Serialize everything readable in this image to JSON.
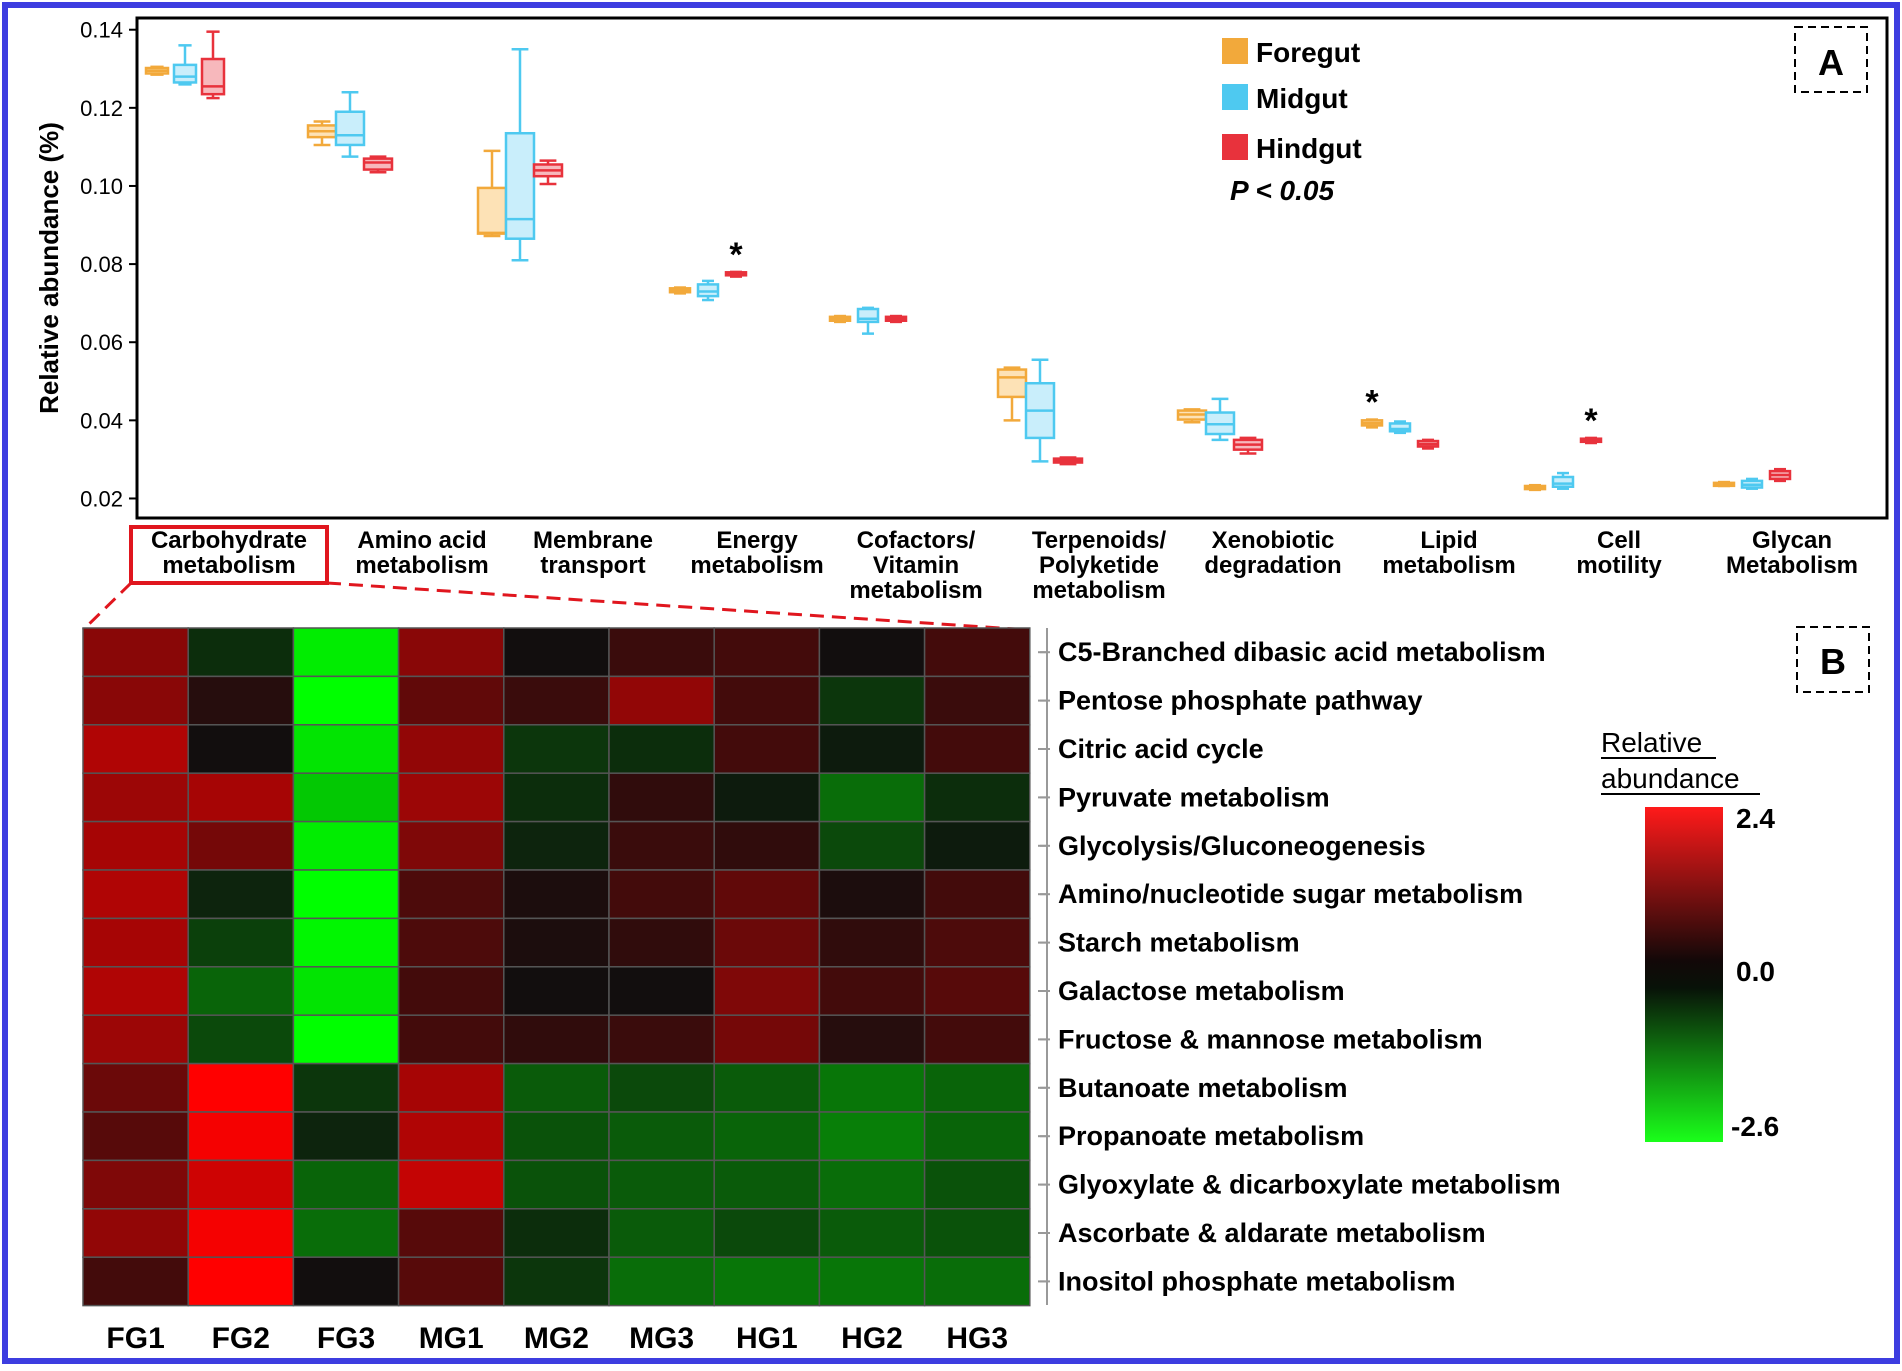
{
  "colors": {
    "border": "#3d3de0",
    "foregut": "#f2a93b",
    "midgut": "#4ec9f0",
    "hindgut": "#e8323c",
    "highlight": "#e0161e"
  },
  "chart_data": [
    {
      "type": "box",
      "panel_label": "A",
      "ylabel": "Relative abundance (%)",
      "ylim": [
        0.015,
        0.143
      ],
      "yticks": [
        "0.02",
        "0.04",
        "0.06",
        "0.08",
        "0.10",
        "0.12",
        "0.14"
      ],
      "ytick_values": [
        0.02,
        0.04,
        0.06,
        0.08,
        0.1,
        0.12,
        0.14
      ],
      "categories": [
        [
          "Carbohydrate",
          "metabolism"
        ],
        [
          "Amino  acid",
          "metabolism"
        ],
        [
          "Membrane",
          "transport"
        ],
        [
          "Energy",
          "metabolism"
        ],
        [
          "Cofactors/",
          "Vitamin",
          "metabolism"
        ],
        [
          "Terpenoids/",
          "Polyketide",
          "metabolism"
        ],
        [
          "Xenobiotic",
          "degradation"
        ],
        [
          "Lipid",
          "metabolism"
        ],
        [
          "Cell",
          "motility"
        ],
        [
          "Glycan",
          "Metabolism"
        ]
      ],
      "highlighted_category": 0,
      "legend": {
        "entries": [
          "Foregut",
          "Midgut",
          "Hindgut"
        ],
        "note": "P < 0.05",
        "placement": "top-right"
      },
      "series": [
        {
          "name": "Foregut",
          "boxes": [
            {
              "min": 0.1285,
              "q1": 0.1288,
              "median": 0.1295,
              "q3": 0.1302,
              "max": 0.1305
            },
            {
              "min": 0.1105,
              "q1": 0.1125,
              "median": 0.114,
              "q3": 0.1155,
              "max": 0.1165
            },
            {
              "min": 0.0872,
              "q1": 0.0878,
              "median": 0.088,
              "q3": 0.0995,
              "max": 0.109
            },
            {
              "min": 0.0725,
              "q1": 0.0728,
              "median": 0.0733,
              "q3": 0.0738,
              "max": 0.074
            },
            {
              "min": 0.0652,
              "q1": 0.0655,
              "median": 0.066,
              "q3": 0.0665,
              "max": 0.0667
            },
            {
              "min": 0.04,
              "q1": 0.046,
              "median": 0.051,
              "q3": 0.053,
              "max": 0.0535
            },
            {
              "min": 0.0395,
              "q1": 0.0402,
              "median": 0.0415,
              "q3": 0.0425,
              "max": 0.0428
            },
            {
              "min": 0.0382,
              "q1": 0.0387,
              "median": 0.0393,
              "q3": 0.04,
              "max": 0.0402
            },
            {
              "min": 0.0222,
              "q1": 0.0224,
              "median": 0.0228,
              "q3": 0.0232,
              "max": 0.0234
            },
            {
              "min": 0.0232,
              "q1": 0.0234,
              "median": 0.0237,
              "q3": 0.024,
              "max": 0.0242
            }
          ]
        },
        {
          "name": "Midgut",
          "boxes": [
            {
              "min": 0.126,
              "q1": 0.1265,
              "median": 0.128,
              "q3": 0.131,
              "max": 0.136
            },
            {
              "min": 0.1075,
              "q1": 0.1105,
              "median": 0.113,
              "q3": 0.119,
              "max": 0.124
            },
            {
              "min": 0.081,
              "q1": 0.0865,
              "median": 0.0915,
              "q3": 0.1135,
              "max": 0.135
            },
            {
              "min": 0.0708,
              "q1": 0.0718,
              "median": 0.073,
              "q3": 0.0748,
              "max": 0.0757
            },
            {
              "min": 0.0622,
              "q1": 0.0652,
              "median": 0.066,
              "q3": 0.0685,
              "max": 0.0688
            },
            {
              "min": 0.0295,
              "q1": 0.0355,
              "median": 0.0425,
              "q3": 0.0495,
              "max": 0.0555
            },
            {
              "min": 0.035,
              "q1": 0.0365,
              "median": 0.039,
              "q3": 0.042,
              "max": 0.0455
            },
            {
              "min": 0.0368,
              "q1": 0.0372,
              "median": 0.0378,
              "q3": 0.0392,
              "max": 0.0397
            },
            {
              "min": 0.0225,
              "q1": 0.023,
              "median": 0.0238,
              "q3": 0.0255,
              "max": 0.0265
            },
            {
              "min": 0.0225,
              "q1": 0.0228,
              "median": 0.0235,
              "q3": 0.0245,
              "max": 0.025
            }
          ]
        },
        {
          "name": "Hindgut",
          "boxes": [
            {
              "min": 0.1225,
              "q1": 0.1235,
              "median": 0.1255,
              "q3": 0.1325,
              "max": 0.1395
            },
            {
              "min": 0.1035,
              "q1": 0.1042,
              "median": 0.106,
              "q3": 0.107,
              "max": 0.1075
            },
            {
              "min": 0.1005,
              "q1": 0.1025,
              "median": 0.104,
              "q3": 0.1055,
              "max": 0.1065
            },
            {
              "min": 0.0768,
              "q1": 0.0772,
              "median": 0.0775,
              "q3": 0.0779,
              "max": 0.078
            },
            {
              "min": 0.0652,
              "q1": 0.0655,
              "median": 0.0659,
              "q3": 0.0665,
              "max": 0.0667
            },
            {
              "min": 0.0288,
              "q1": 0.0292,
              "median": 0.0298,
              "q3": 0.0302,
              "max": 0.0305
            },
            {
              "min": 0.0315,
              "q1": 0.0325,
              "median": 0.0338,
              "q3": 0.035,
              "max": 0.0355
            },
            {
              "min": 0.0328,
              "q1": 0.0333,
              "median": 0.0339,
              "q3": 0.0347,
              "max": 0.035
            },
            {
              "min": 0.0342,
              "q1": 0.0345,
              "median": 0.0349,
              "q3": 0.0353,
              "max": 0.0355
            },
            {
              "min": 0.0245,
              "q1": 0.025,
              "median": 0.026,
              "q3": 0.027,
              "max": 0.0275
            }
          ]
        }
      ],
      "annotations": [
        {
          "text": "*",
          "category": 3,
          "series": "Hindgut"
        },
        {
          "text": "*",
          "category": 7,
          "series": "Foregut"
        },
        {
          "text": "*",
          "category": 8,
          "series": "Hindgut"
        }
      ]
    },
    {
      "type": "heatmap",
      "panel_label": "B",
      "columns": [
        "FG1",
        "FG2",
        "FG3",
        "MG1",
        "MG2",
        "MG3",
        "HG1",
        "HG2",
        "HG3"
      ],
      "rows": [
        "C5-Branched dibasic acid metabolism",
        "Pentose phosphate pathway",
        "Citric acid cycle",
        "Pyruvate metabolism",
        "Glycolysis/Gluconeogenesis",
        "Amino/nucleotide  sugar metabolism",
        "Starch metabolism",
        "Galactose metabolism",
        "Fructose & mannose metabolism",
        "Butanoate metabolism",
        "Propanoate metabolism",
        "Glyoxylate & dicarboxylate metabolism",
        "Ascorbate & aldarate metabolism",
        "Inositol phosphate metabolism"
      ],
      "values": [
        [
          1.2,
          -0.3,
          -2.4,
          1.2,
          0.0,
          0.4,
          0.5,
          0.0,
          0.5
        ],
        [
          1.2,
          0.2,
          -2.6,
          0.8,
          0.4,
          1.3,
          0.5,
          -0.4,
          0.4
        ],
        [
          1.6,
          0.0,
          -2.3,
          1.3,
          -0.4,
          -0.3,
          0.5,
          -0.1,
          0.5
        ],
        [
          1.4,
          1.5,
          -2.0,
          1.4,
          -0.3,
          0.3,
          -0.1,
          -1.0,
          -0.3
        ],
        [
          1.5,
          1.0,
          -2.4,
          1.1,
          -0.2,
          0.4,
          0.3,
          -0.6,
          -0.1
        ],
        [
          1.6,
          -0.2,
          -2.6,
          0.6,
          0.1,
          0.5,
          0.8,
          0.1,
          0.5
        ],
        [
          1.5,
          -0.5,
          -2.5,
          0.6,
          0.1,
          0.3,
          0.9,
          0.3,
          0.6
        ],
        [
          1.6,
          -0.9,
          -2.3,
          0.5,
          0.0,
          0.0,
          1.1,
          0.5,
          0.7
        ],
        [
          1.4,
          -0.6,
          -2.6,
          0.5,
          0.3,
          0.4,
          1.0,
          0.2,
          0.5
        ],
        [
          0.9,
          2.4,
          -0.4,
          1.5,
          -0.8,
          -0.6,
          -0.8,
          -1.1,
          -0.9
        ],
        [
          0.7,
          2.3,
          -0.2,
          1.6,
          -0.7,
          -0.8,
          -0.9,
          -1.2,
          -0.9
        ],
        [
          1.1,
          1.9,
          -0.9,
          1.8,
          -0.7,
          -0.8,
          -0.8,
          -1.0,
          -0.7
        ],
        [
          1.3,
          2.3,
          -1.0,
          0.7,
          -0.3,
          -0.8,
          -0.6,
          -0.8,
          -0.7
        ],
        [
          0.5,
          2.4,
          0.0,
          0.7,
          -0.4,
          -1.0,
          -1.1,
          -1.1,
          -1.0
        ]
      ],
      "scale": {
        "title": [
          "Relative",
          "abundance"
        ],
        "max_label": "2.4",
        "mid_label": "0.0",
        "min_label": "-2.6",
        "min": -2.6,
        "max": 2.4
      }
    }
  ]
}
